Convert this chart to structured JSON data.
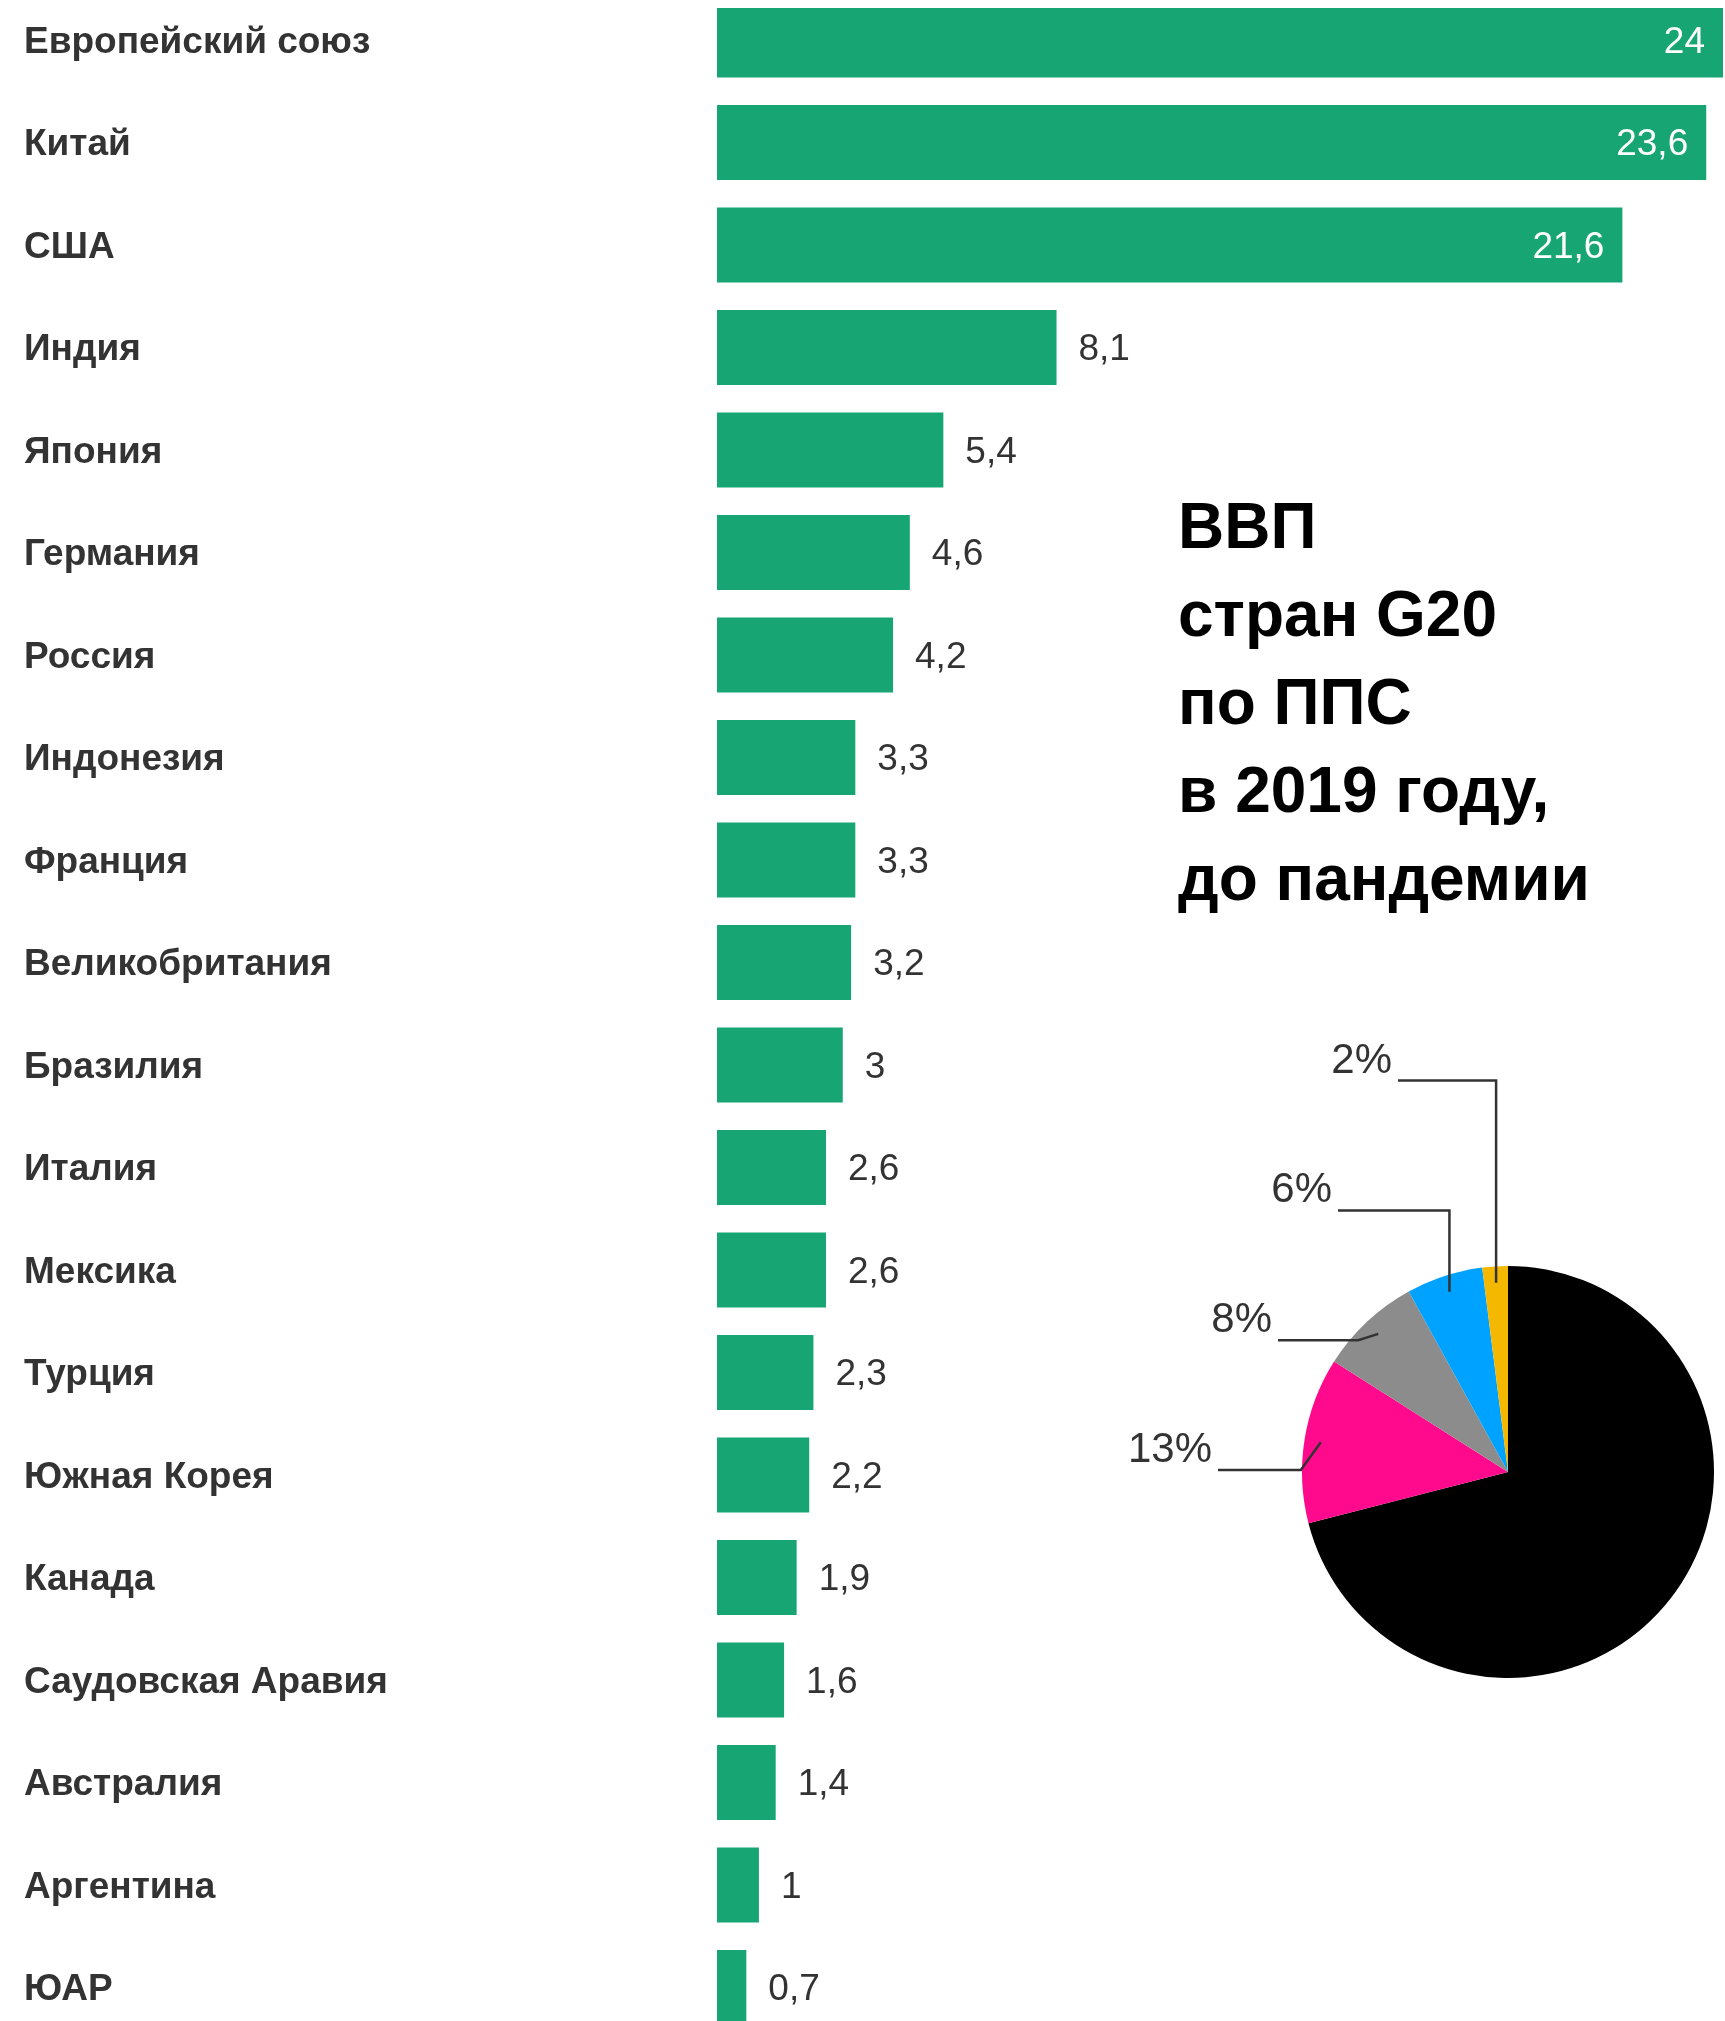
{
  "chart_data": [
    {
      "type": "bar",
      "orientation": "horizontal",
      "title": "ВВП\nстран G20\nпо ППС\nв 2019 году,\nдо пандемии",
      "categories": [
        "Европейский союз",
        "Китай",
        "США",
        "Индия",
        "Япония",
        "Германия",
        "Россия",
        "Индонезия",
        "Франция",
        "Великобритания",
        "Бразилия",
        "Италия",
        "Мексика",
        "Турция",
        "Южная Корея",
        "Канада",
        "Саудовская Аравия",
        "Австралия",
        "Аргентина",
        "ЮАР"
      ],
      "values": [
        24,
        23.6,
        21.6,
        8.1,
        5.4,
        4.6,
        4.2,
        3.3,
        3.3,
        3.2,
        3,
        2.6,
        2.6,
        2.3,
        2.2,
        1.9,
        1.6,
        1.4,
        1,
        0.7
      ],
      "value_labels": [
        "24",
        "23,6",
        "21,6",
        "8,1",
        "5,4",
        "4,6",
        "4,2",
        "3,3",
        "3,3",
        "3,2",
        "3",
        "2,6",
        "2,6",
        "2,3",
        "2,2",
        "1,9",
        "1,6",
        "1,4",
        "1",
        "0,7"
      ],
      "color": "#17a673"
    },
    {
      "type": "pie",
      "categories": [
        null,
        null,
        null,
        null,
        null
      ],
      "values": [
        71,
        13,
        8,
        6,
        2
      ],
      "colors": [
        "#000000",
        "#ff0a8c",
        "#8c8c8c",
        "#00a2ff",
        "#f5b800"
      ],
      "value_labels": [
        null,
        "13%",
        "8%",
        "6%",
        "2%"
      ]
    }
  ]
}
